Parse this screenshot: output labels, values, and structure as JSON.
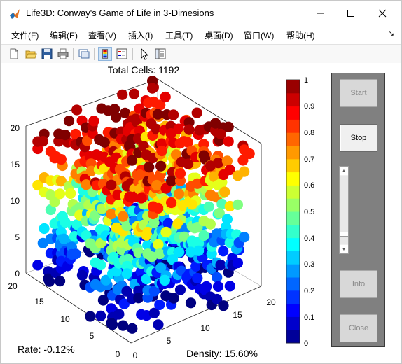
{
  "window": {
    "title": "Life3D: Conway's Game of Life in 3-Dimesions",
    "icon": "matlab-icon",
    "controls": [
      "minimize-icon",
      "maximize-icon",
      "close-icon"
    ]
  },
  "menu": {
    "items": [
      "文件(F)",
      "编辑(E)",
      "查看(V)",
      "插入(I)",
      "工具(T)",
      "桌面(D)",
      "窗口(W)",
      "帮助(H)"
    ],
    "overflow": "↘"
  },
  "toolbar": {
    "icons": [
      "new-figure-icon",
      "open-file-icon",
      "save-icon",
      "print-icon",
      "link-plot-icon",
      "colorbar-icon",
      "legend-icon",
      "pointer-icon",
      "property-inspector-icon"
    ]
  },
  "plot": {
    "title_text": "Total Cells: 1192",
    "rate_text": "Rate: -0.12%",
    "density_text": "Density: 15.60%",
    "z_ticks": [
      "20",
      "15",
      "10",
      "5",
      "0"
    ],
    "y_ticks": [
      "20",
      "15",
      "10",
      "5",
      "0"
    ],
    "x_ticks": [
      "0",
      "5",
      "10",
      "15",
      "20"
    ],
    "colorbar_ticks": [
      "1",
      "0.9",
      "0.8",
      "0.7",
      "0.6",
      "0.5",
      "0.4",
      "0.3",
      "0.2",
      "0.1",
      "0"
    ],
    "colormap": "jet"
  },
  "controls": {
    "start": "Start",
    "stop": "Stop",
    "info": "Info",
    "close": "Close",
    "slider_up": "▲",
    "slider_down": "▼",
    "slider_value": 0.88
  }
}
